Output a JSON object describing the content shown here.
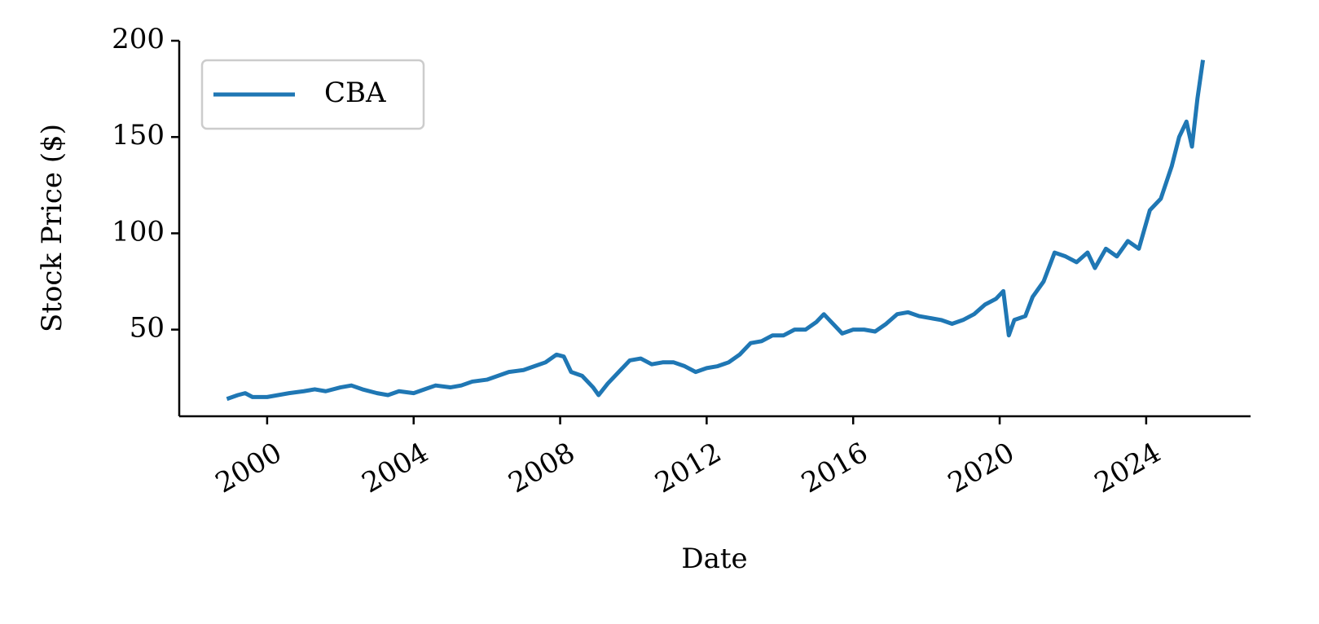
{
  "chart_data": {
    "type": "line",
    "xlabel": "Date",
    "ylabel": "Stock Price ($)",
    "x": [
      1998.9,
      1999.2,
      1999.4,
      1999.6,
      2000.0,
      2000.3,
      2000.6,
      2001.0,
      2001.3,
      2001.6,
      2002.0,
      2002.3,
      2002.6,
      2003.0,
      2003.3,
      2003.6,
      2004.0,
      2004.3,
      2004.6,
      2005.0,
      2005.3,
      2005.6,
      2006.0,
      2006.3,
      2006.6,
      2007.0,
      2007.3,
      2007.6,
      2007.9,
      2008.1,
      2008.3,
      2008.6,
      2008.9,
      2009.05,
      2009.3,
      2009.6,
      2009.9,
      2010.2,
      2010.5,
      2010.8,
      2011.1,
      2011.4,
      2011.7,
      2012.0,
      2012.3,
      2012.6,
      2012.9,
      2013.2,
      2013.5,
      2013.8,
      2014.1,
      2014.4,
      2014.7,
      2015.0,
      2015.2,
      2015.5,
      2015.7,
      2016.0,
      2016.3,
      2016.6,
      2016.9,
      2017.2,
      2017.5,
      2017.8,
      2018.1,
      2018.4,
      2018.7,
      2019.0,
      2019.3,
      2019.6,
      2019.9,
      2020.1,
      2020.25,
      2020.4,
      2020.7,
      2020.9,
      2021.2,
      2021.5,
      2021.8,
      2022.1,
      2022.4,
      2022.6,
      2022.9,
      2023.2,
      2023.5,
      2023.8,
      2024.1,
      2024.4,
      2024.7,
      2024.9,
      2025.1,
      2025.25,
      2025.4,
      2025.55
    ],
    "series": [
      {
        "name": "CBA",
        "color": "#1f77b4",
        "values": [
          14,
          16,
          17,
          15,
          15,
          16,
          17,
          18,
          19,
          18,
          20,
          21,
          19,
          17,
          16,
          18,
          17,
          19,
          21,
          20,
          21,
          23,
          24,
          26,
          28,
          29,
          31,
          33,
          37,
          36,
          28,
          26,
          20,
          16,
          22,
          28,
          34,
          35,
          32,
          33,
          33,
          31,
          28,
          30,
          31,
          33,
          37,
          43,
          44,
          47,
          47,
          50,
          50,
          54,
          58,
          52,
          48,
          50,
          50,
          49,
          53,
          58,
          59,
          57,
          56,
          55,
          53,
          55,
          58,
          63,
          66,
          70,
          47,
          55,
          57,
          67,
          75,
          90,
          88,
          85,
          90,
          82,
          92,
          88,
          96,
          92,
          112,
          118,
          135,
          150,
          158,
          145,
          170,
          190
        ]
      }
    ],
    "xlim": [
      1997.6,
      2026.85
    ],
    "xticks": [
      2000,
      2004,
      2008,
      2012,
      2016,
      2020,
      2024
    ],
    "ylim": [
      5,
      200
    ],
    "yticks": [
      50,
      100,
      150,
      200
    ],
    "legend": "upper left"
  }
}
